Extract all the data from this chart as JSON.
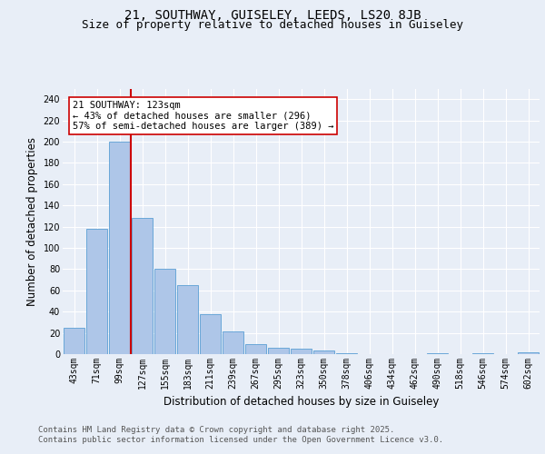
{
  "title1": "21, SOUTHWAY, GUISELEY, LEEDS, LS20 8JB",
  "title2": "Size of property relative to detached houses in Guiseley",
  "xlabel": "Distribution of detached houses by size in Guiseley",
  "ylabel": "Number of detached properties",
  "footnote1": "Contains HM Land Registry data © Crown copyright and database right 2025.",
  "footnote2": "Contains public sector information licensed under the Open Government Licence v3.0.",
  "bar_labels": [
    "43sqm",
    "71sqm",
    "99sqm",
    "127sqm",
    "155sqm",
    "183sqm",
    "211sqm",
    "239sqm",
    "267sqm",
    "295sqm",
    "323sqm",
    "350sqm",
    "378sqm",
    "406sqm",
    "434sqm",
    "462sqm",
    "490sqm",
    "518sqm",
    "546sqm",
    "574sqm",
    "602sqm"
  ],
  "bar_values": [
    25,
    118,
    200,
    128,
    80,
    65,
    38,
    21,
    9,
    6,
    5,
    3,
    1,
    0,
    0,
    0,
    1,
    0,
    1,
    0,
    2
  ],
  "bar_color": "#aec6e8",
  "bar_edge_color": "#5a9fd4",
  "annotation_line1": "21 SOUTHWAY: 123sqm",
  "annotation_line2": "← 43% of detached houses are smaller (296)",
  "annotation_line3": "57% of semi-detached houses are larger (389) →",
  "vline_x_index": 3,
  "vline_color": "#cc0000",
  "ylim": [
    0,
    250
  ],
  "yticks": [
    0,
    20,
    40,
    60,
    80,
    100,
    120,
    140,
    160,
    180,
    200,
    220,
    240
  ],
  "bg_color": "#e8eef7",
  "plot_bg_color": "#e8eef7",
  "grid_color": "#ffffff",
  "title1_fontsize": 10,
  "title2_fontsize": 9,
  "xlabel_fontsize": 8.5,
  "ylabel_fontsize": 8.5,
  "footnote_fontsize": 6.5,
  "tick_fontsize": 7,
  "annot_fontsize": 7.5
}
